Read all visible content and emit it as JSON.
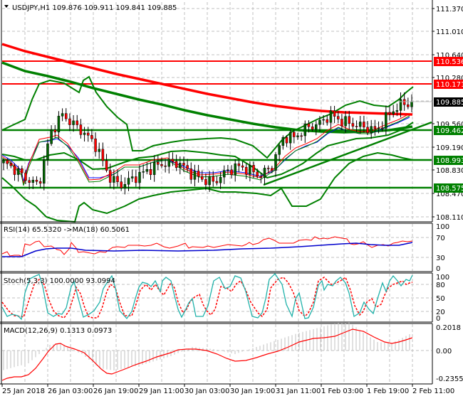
{
  "window": {
    "symbol_line": "USDJPY,H1  109.876 109.911 109.841 109.885",
    "symbol": "USDJPY,H1",
    "open": "109.876",
    "high": "109.911",
    "low": "109.841",
    "close": "109.885"
  },
  "colors": {
    "bull_candle": "#006400",
    "bear_candle": "#ff0000",
    "bollinger": "#008000",
    "ma_slow_red": "#ff0000",
    "ma_slow_green": "#008000",
    "level_red": "#ff0000",
    "level_green": "#008000",
    "rsi": "#ff0000",
    "rsi_ma": "#0000cd",
    "stoch_main": "#20b2aa",
    "stoch_signal": "#ff0000",
    "macd_hist": "#c0c0c0",
    "macd_signal": "#ff0000",
    "grid": "#c0c0c0"
  },
  "main_panel": {
    "price_axis": [
      "111.370",
      "111.010",
      "110.640",
      "110.280",
      "109.920",
      "109.560",
      "109.190",
      "108.830",
      "108.470",
      "108.110"
    ],
    "current_price_label": "109.885",
    "levels": [
      {
        "value": "110.536",
        "color": "red"
      },
      {
        "value": "110.171",
        "color": "red"
      },
      {
        "value": "109.462",
        "color": "green"
      },
      {
        "value": "108.993",
        "color": "green"
      },
      {
        "value": "108.575",
        "color": "green"
      }
    ]
  },
  "rsi_panel": {
    "label": "RSI(14) 65.5320  ->MA(18) 60.5061",
    "axis": [
      "100",
      "70",
      "30",
      "0"
    ]
  },
  "stoch_panel": {
    "label": "Stoch(5,3,3) 100.0000 93.0994",
    "axis": [
      "100",
      "80",
      "50",
      "20",
      "0"
    ]
  },
  "macd_panel": {
    "label": "MACD(12,26,9) 0.1313 0.0973",
    "axis": [
      "0.2018",
      "0.00",
      "-0.2355"
    ]
  },
  "time_axis": [
    "25 Jan 2018",
    "26 Jan 03:00",
    "26 Jan 19:00",
    "29 Jan 11:00",
    "30 Jan 03:00",
    "30 Jan 19:00",
    "31 Jan 11:00",
    "1 Feb 03:00",
    "1 Feb 19:00",
    "2 Feb 11:00"
  ],
  "chart_data": [
    {
      "type": "candlestick",
      "title": "USDJPY,H1 109.876 109.911 109.841 109.885",
      "xlabel": "",
      "ylabel": "Price",
      "ylim": [
        108.05,
        111.45
      ],
      "x_ticks": [
        "25 Jan 2018",
        "26 Jan 03:00",
        "26 Jan 19:00",
        "29 Jan 11:00",
        "30 Jan 03:00",
        "30 Jan 19:00",
        "31 Jan 11:00",
        "1 Feb 03:00",
        "1 Feb 19:00",
        "2 Feb 11:00"
      ],
      "y_ticks": [
        111.37,
        111.01,
        110.64,
        110.28,
        109.92,
        109.56,
        109.19,
        108.83,
        108.47,
        108.11
      ],
      "horizontal_levels": [
        110.536,
        110.171,
        109.462,
        108.993,
        108.575
      ],
      "current_price": 109.885,
      "ohlc_last": {
        "open": 109.876,
        "high": 109.911,
        "low": 109.841,
        "close": 109.885
      },
      "approx_close_path": [
        108.95,
        108.85,
        108.7,
        108.6,
        109.4,
        109.7,
        109.55,
        109.4,
        109.2,
        108.75,
        108.6,
        108.7,
        108.8,
        108.9,
        108.95,
        108.95,
        108.8,
        108.7,
        108.65,
        108.8,
        108.9,
        108.85,
        108.75,
        108.9,
        109.35,
        109.35,
        109.5,
        109.55,
        109.7,
        109.6,
        109.55,
        109.5,
        109.45,
        109.7,
        109.85,
        109.885
      ],
      "grid": true
    },
    {
      "type": "line",
      "title": "RSI(14) 65.5320 ->MA(18) 60.5061",
      "ylim": [
        0,
        100
      ],
      "y_ticks": [
        100,
        70,
        30,
        0
      ],
      "series": [
        {
          "name": "RSI(14)",
          "last": 65.532
        },
        {
          "name": "MA(18)",
          "last": 60.5061
        }
      ],
      "grid": true
    },
    {
      "type": "line",
      "title": "Stoch(5,3,3) 100.0000 93.0994",
      "ylim": [
        0,
        100
      ],
      "y_ticks": [
        100,
        80,
        50,
        20,
        0
      ],
      "series": [
        {
          "name": "%K",
          "last": 100.0
        },
        {
          "name": "%D",
          "last": 93.0994
        }
      ],
      "grid": true
    },
    {
      "type": "bar",
      "title": "MACD(12,26,9) 0.1313 0.0973",
      "ylim": [
        -0.2355,
        0.2018
      ],
      "y_ticks": [
        0.2018,
        0.0,
        -0.2355
      ],
      "series": [
        {
          "name": "MACD",
          "last": 0.1313
        },
        {
          "name": "Signal",
          "last": 0.0973
        }
      ],
      "grid": true
    }
  ]
}
